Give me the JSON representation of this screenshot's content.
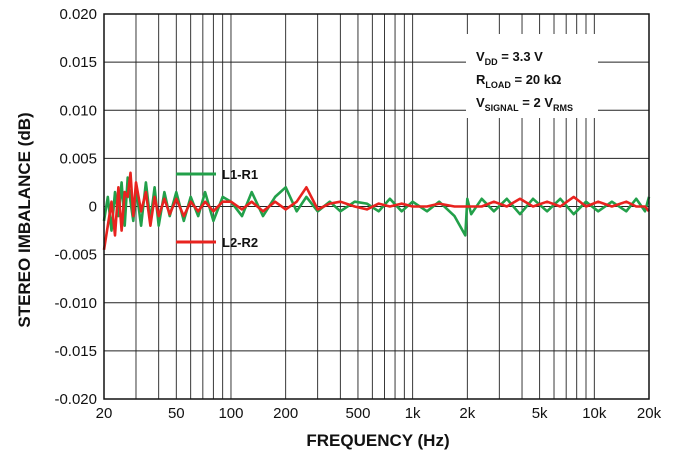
{
  "chart_data": {
    "type": "line",
    "xlabel": "FREQUENCY (Hz)",
    "ylabel": "STEREO IMBALANCE (dB)",
    "x_scale": "log",
    "xlim": [
      20,
      20000
    ],
    "ylim": [
      -0.02,
      0.02
    ],
    "grid": true,
    "x_ticks": [
      20,
      50,
      100,
      200,
      500,
      1000,
      2000,
      5000,
      10000,
      20000
    ],
    "x_tick_labels": [
      "20",
      "50",
      "100",
      "200",
      "500",
      "1k",
      "2k",
      "5k",
      "10k",
      "20k"
    ],
    "y_ticks": [
      -0.02,
      -0.015,
      -0.01,
      -0.005,
      0,
      0.005,
      0.01,
      0.015,
      0.02
    ],
    "y_tick_labels": [
      "-0.020",
      "-0.015",
      "-0.010",
      "-0.005",
      "0",
      "0.005",
      "0.010",
      "0.015",
      "0.020"
    ],
    "conditions": [
      {
        "main": "V",
        "sub": "DD",
        "rest": " = 3.3 V",
        "sub2": ""
      },
      {
        "main": "R",
        "sub": "LOAD",
        "rest": " = 20 kΩ",
        "sub2": ""
      },
      {
        "main": "V",
        "sub": "SIGNAL",
        "rest": " = 2 V",
        "sub2": "RMS"
      }
    ],
    "series": [
      {
        "name": "L1-R1",
        "color": "#22a04a",
        "x": [
          20,
          21,
          22,
          23,
          24,
          25,
          26,
          27,
          28,
          29,
          30,
          32,
          34,
          36,
          38,
          40,
          43,
          46,
          50,
          55,
          60,
          66,
          72,
          80,
          90,
          100,
          115,
          130,
          150,
          175,
          200,
          230,
          260,
          300,
          350,
          400,
          480,
          560,
          650,
          750,
          870,
          1000,
          1200,
          1400,
          1700,
          1950,
          2000,
          2100,
          2400,
          2800,
          3300,
          3900,
          4600,
          5500,
          6500,
          7700,
          9000,
          10500,
          12500,
          15000,
          17000,
          19000,
          20000
        ],
        "y": [
          -0.0015,
          0.001,
          -0.0025,
          0.0015,
          -0.001,
          0.0025,
          -0.002,
          0.003,
          0.0005,
          -0.0015,
          0.002,
          -0.002,
          0.0025,
          -0.0015,
          0.002,
          -0.002,
          0.0015,
          -0.001,
          0.0015,
          -0.0015,
          0.001,
          -0.001,
          0.0015,
          -0.0015,
          0.001,
          0.0005,
          -0.001,
          0.0015,
          -0.001,
          0.001,
          0.002,
          -0.0005,
          0.001,
          -0.0005,
          0.0005,
          -0.0005,
          0.0005,
          0.0003,
          -0.0005,
          0.0008,
          -0.0005,
          0.0005,
          -0.0005,
          0.0005,
          -0.001,
          -0.003,
          0.0008,
          -0.0008,
          0.0008,
          -0.0005,
          0.0008,
          -0.0008,
          0.0008,
          -0.0005,
          0.0008,
          -0.0008,
          0.0005,
          -0.0005,
          0.0005,
          -0.0005,
          0.0008,
          -0.0005,
          0.001
        ]
      },
      {
        "name": "L2-R2",
        "color": "#e8231f",
        "x": [
          20,
          21,
          22,
          23,
          24,
          25,
          26,
          27,
          28,
          29,
          30,
          32,
          34,
          36,
          38,
          40,
          43,
          46,
          50,
          55,
          60,
          66,
          72,
          80,
          90,
          100,
          115,
          130,
          150,
          175,
          200,
          230,
          260,
          300,
          350,
          400,
          480,
          560,
          650,
          750,
          870,
          1000,
          1200,
          1400,
          1700,
          2000,
          2400,
          2800,
          3300,
          3900,
          4600,
          5500,
          6500,
          7700,
          9000,
          10500,
          12500,
          15000,
          17000,
          19000,
          20000
        ],
        "y": [
          -0.0045,
          -0.002,
          0.0005,
          -0.003,
          0.002,
          -0.0025,
          0.0015,
          0.001,
          0.0035,
          -0.001,
          0.0025,
          -0.0005,
          0.0015,
          -0.002,
          0.001,
          -0.001,
          0.0008,
          -0.0008,
          0.0008,
          -0.001,
          0.0005,
          -0.0005,
          0.0005,
          -0.0005,
          0.0005,
          0.0005,
          -0.0003,
          0.0005,
          -0.0005,
          0.0005,
          -0.0003,
          0.0005,
          0.002,
          -0.0003,
          0.0003,
          0.0005,
          0.0,
          -0.0003,
          0.0003,
          0.0,
          0.0003,
          0.0,
          0.0,
          0.0003,
          0.0,
          0.0,
          0.0,
          0.0005,
          0.0,
          0.0008,
          0.0,
          0.0005,
          0.0,
          0.001,
          0.0,
          0.0005,
          0.0,
          0.0005,
          0.0,
          0.0,
          -0.0005
        ]
      }
    ]
  }
}
